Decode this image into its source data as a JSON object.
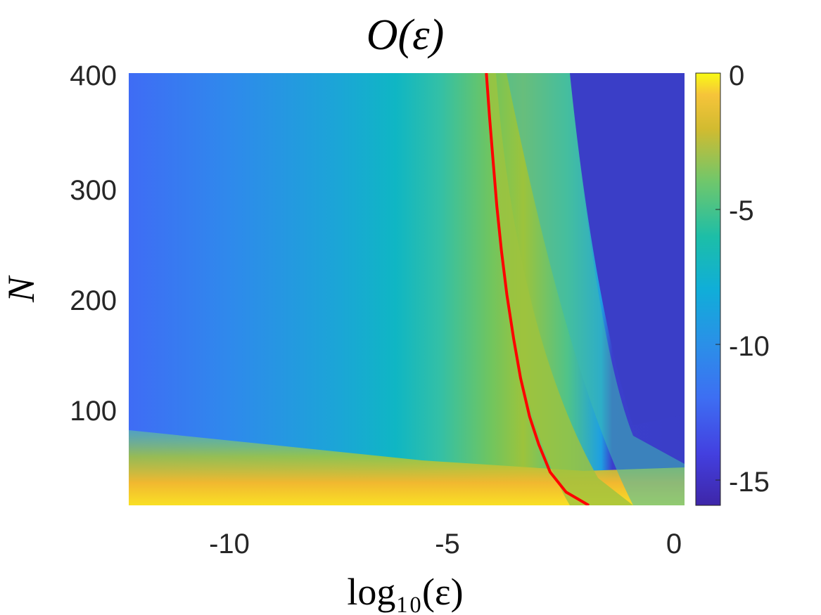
{
  "chart_data": {
    "type": "heatmap",
    "title": "O(ε)",
    "xlabel": "log₁₀(ε)",
    "ylabel": "N",
    "xlim": [
      -12,
      0.2
    ],
    "ylim": [
      10,
      400
    ],
    "xticks": [
      -10,
      -5,
      0
    ],
    "xtick_labels": [
      "-10",
      "-5",
      "0"
    ],
    "yticks": [
      100,
      200,
      300,
      400
    ],
    "ytick_labels": [
      "100",
      "200",
      "300",
      "400"
    ],
    "colorbar": {
      "range": [
        -16,
        0
      ],
      "ticks": [
        0,
        -5,
        -10,
        -15
      ],
      "tick_labels": [
        "0",
        "-5",
        "-10",
        "-15"
      ],
      "colormap": "parula"
    },
    "series": [
      {
        "name": "red curve",
        "color": "#ff0000",
        "x": [
          -4.15,
          -4.08,
          -4.0,
          -3.92,
          -3.82,
          -3.7,
          -3.55,
          -3.4,
          -3.2,
          -3.0,
          -2.75,
          -2.4,
          -1.9
        ],
        "y": [
          400,
          360,
          320,
          280,
          240,
          200,
          160,
          125,
          90,
          65,
          40,
          22,
          10
        ]
      }
    ]
  }
}
